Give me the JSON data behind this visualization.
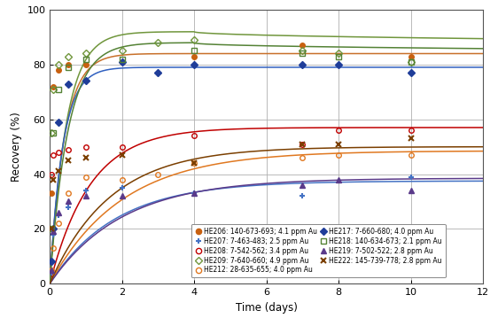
{
  "xlabel": "Time (days)",
  "ylabel": "Recovery (%)",
  "xlim": [
    0,
    12
  ],
  "ylim": [
    0,
    100
  ],
  "xticks": [
    0,
    2,
    4,
    6,
    8,
    10,
    12
  ],
  "yticks": [
    0,
    20,
    40,
    60,
    80,
    100
  ],
  "series": [
    {
      "label": "HE206: 140-673-693; 4.1 ppm Au",
      "color": "#c86010",
      "line_color": "#c8702a",
      "marker": "o",
      "filled": true,
      "points_x": [
        0.042,
        0.083,
        0.25,
        0.5,
        1.0,
        2.0,
        4.0,
        7.0,
        10.0
      ],
      "points_y": [
        33,
        72,
        78,
        80,
        80,
        81,
        83,
        87,
        83
      ],
      "curve_A": 84.0,
      "curve_k": 2.5
    },
    {
      "label": "HE207: 7-463-483; 2.5 ppm Au",
      "color": "#4472c4",
      "line_color": "#4472c4",
      "marker": "+",
      "filled": false,
      "points_x": [
        0.042,
        0.083,
        0.25,
        0.5,
        1.0,
        2.0,
        4.0,
        7.0,
        10.0
      ],
      "points_y": [
        4,
        18,
        25,
        28,
        34,
        35,
        33,
        32,
        39
      ],
      "curve_A": 37.5,
      "curve_k": 0.55
    },
    {
      "label": "HE208: 7-542-562; 3.4 ppm Au",
      "color": "#c00000",
      "line_color": "#c00000",
      "marker": "o",
      "filled": false,
      "points_x": [
        0.042,
        0.083,
        0.25,
        0.5,
        1.0,
        2.0,
        4.0,
        7.0,
        8.0,
        10.0
      ],
      "points_y": [
        40,
        47,
        48,
        49,
        50,
        50,
        54,
        51,
        56,
        56
      ],
      "curve_A": 57.0,
      "curve_k": 0.9
    },
    {
      "label": "HE209: 7-640-660; 4.9 ppm Au",
      "color": "#70963c",
      "line_color": "#70963c",
      "marker": "D",
      "filled": false,
      "points_x": [
        0.042,
        0.083,
        0.25,
        0.5,
        1.0,
        2.0,
        3.0,
        4.0,
        7.0,
        8.0,
        10.0
      ],
      "points_y": [
        55,
        71,
        80,
        83,
        84,
        85,
        88,
        89,
        85,
        84,
        81
      ],
      "curve_A": 92.0,
      "curve_k": 2.2,
      "peak": true,
      "curve_B": 0.9,
      "curve_C": 0.5
    },
    {
      "label": "HE212: 28-635-655; 4.0 ppm Au",
      "color": "#e07820",
      "line_color": "#e07820",
      "marker": "o",
      "filled": false,
      "points_x": [
        0.042,
        0.083,
        0.25,
        0.5,
        1.0,
        2.0,
        3.0,
        4.0,
        7.0,
        8.0,
        10.0
      ],
      "points_y": [
        5,
        13,
        22,
        33,
        39,
        38,
        40,
        44,
        46,
        47,
        47
      ],
      "curve_A": 48.5,
      "curve_k": 0.5
    },
    {
      "label": "HE217: 7-660-680; 4.0 ppm Au",
      "color": "#1f3d99",
      "line_color": "#3060c0",
      "marker": "D",
      "filled": true,
      "points_x": [
        0.042,
        0.083,
        0.25,
        0.5,
        1.0,
        2.0,
        3.0,
        4.0,
        7.0,
        8.0,
        10.0
      ],
      "points_y": [
        8,
        20,
        59,
        73,
        74,
        81,
        77,
        80,
        80,
        80,
        77
      ],
      "curve_A": 79.0,
      "curve_k": 2.8
    },
    {
      "label": "HE218: 140-634-673; 2.1 ppm Au",
      "color": "#548235",
      "line_color": "#548235",
      "marker": "s",
      "filled": false,
      "points_x": [
        0.042,
        0.083,
        0.25,
        0.5,
        1.0,
        2.0,
        4.0,
        7.0,
        8.0,
        10.0
      ],
      "points_y": [
        20,
        55,
        71,
        79,
        82,
        82,
        85,
        84,
        83,
        81
      ],
      "curve_A": 88.0,
      "curve_k": 2.0,
      "peak": true,
      "curve_B": 0.85,
      "curve_C": 0.45
    },
    {
      "label": "HE219: 7-502-522; 2.8 ppm Au",
      "color": "#5a3a8a",
      "line_color": "#5a3a8a",
      "marker": "^",
      "filled": true,
      "points_x": [
        0.042,
        0.083,
        0.25,
        0.5,
        1.0,
        2.0,
        4.0,
        7.0,
        8.0,
        10.0
      ],
      "points_y": [
        5,
        19,
        26,
        30,
        32,
        32,
        33,
        36,
        38,
        34
      ],
      "curve_A": 38.5,
      "curve_k": 0.5
    },
    {
      "label": "HE222: 145-739-778; 2.8 ppm Au",
      "color": "#7b3f00",
      "line_color": "#7b3f00",
      "marker": "x",
      "filled": false,
      "points_x": [
        0.042,
        0.083,
        0.25,
        0.5,
        1.0,
        2.0,
        4.0,
        7.0,
        8.0,
        10.0
      ],
      "points_y": [
        20,
        38,
        41,
        45,
        46,
        47,
        44,
        51,
        51,
        53
      ],
      "curve_A": 50.0,
      "curve_k": 0.6
    }
  ],
  "background_color": "#ffffff",
  "grid_color": "#b0b0b0",
  "legend_order": [
    0,
    2,
    4,
    6,
    8,
    1,
    3,
    5,
    7
  ]
}
